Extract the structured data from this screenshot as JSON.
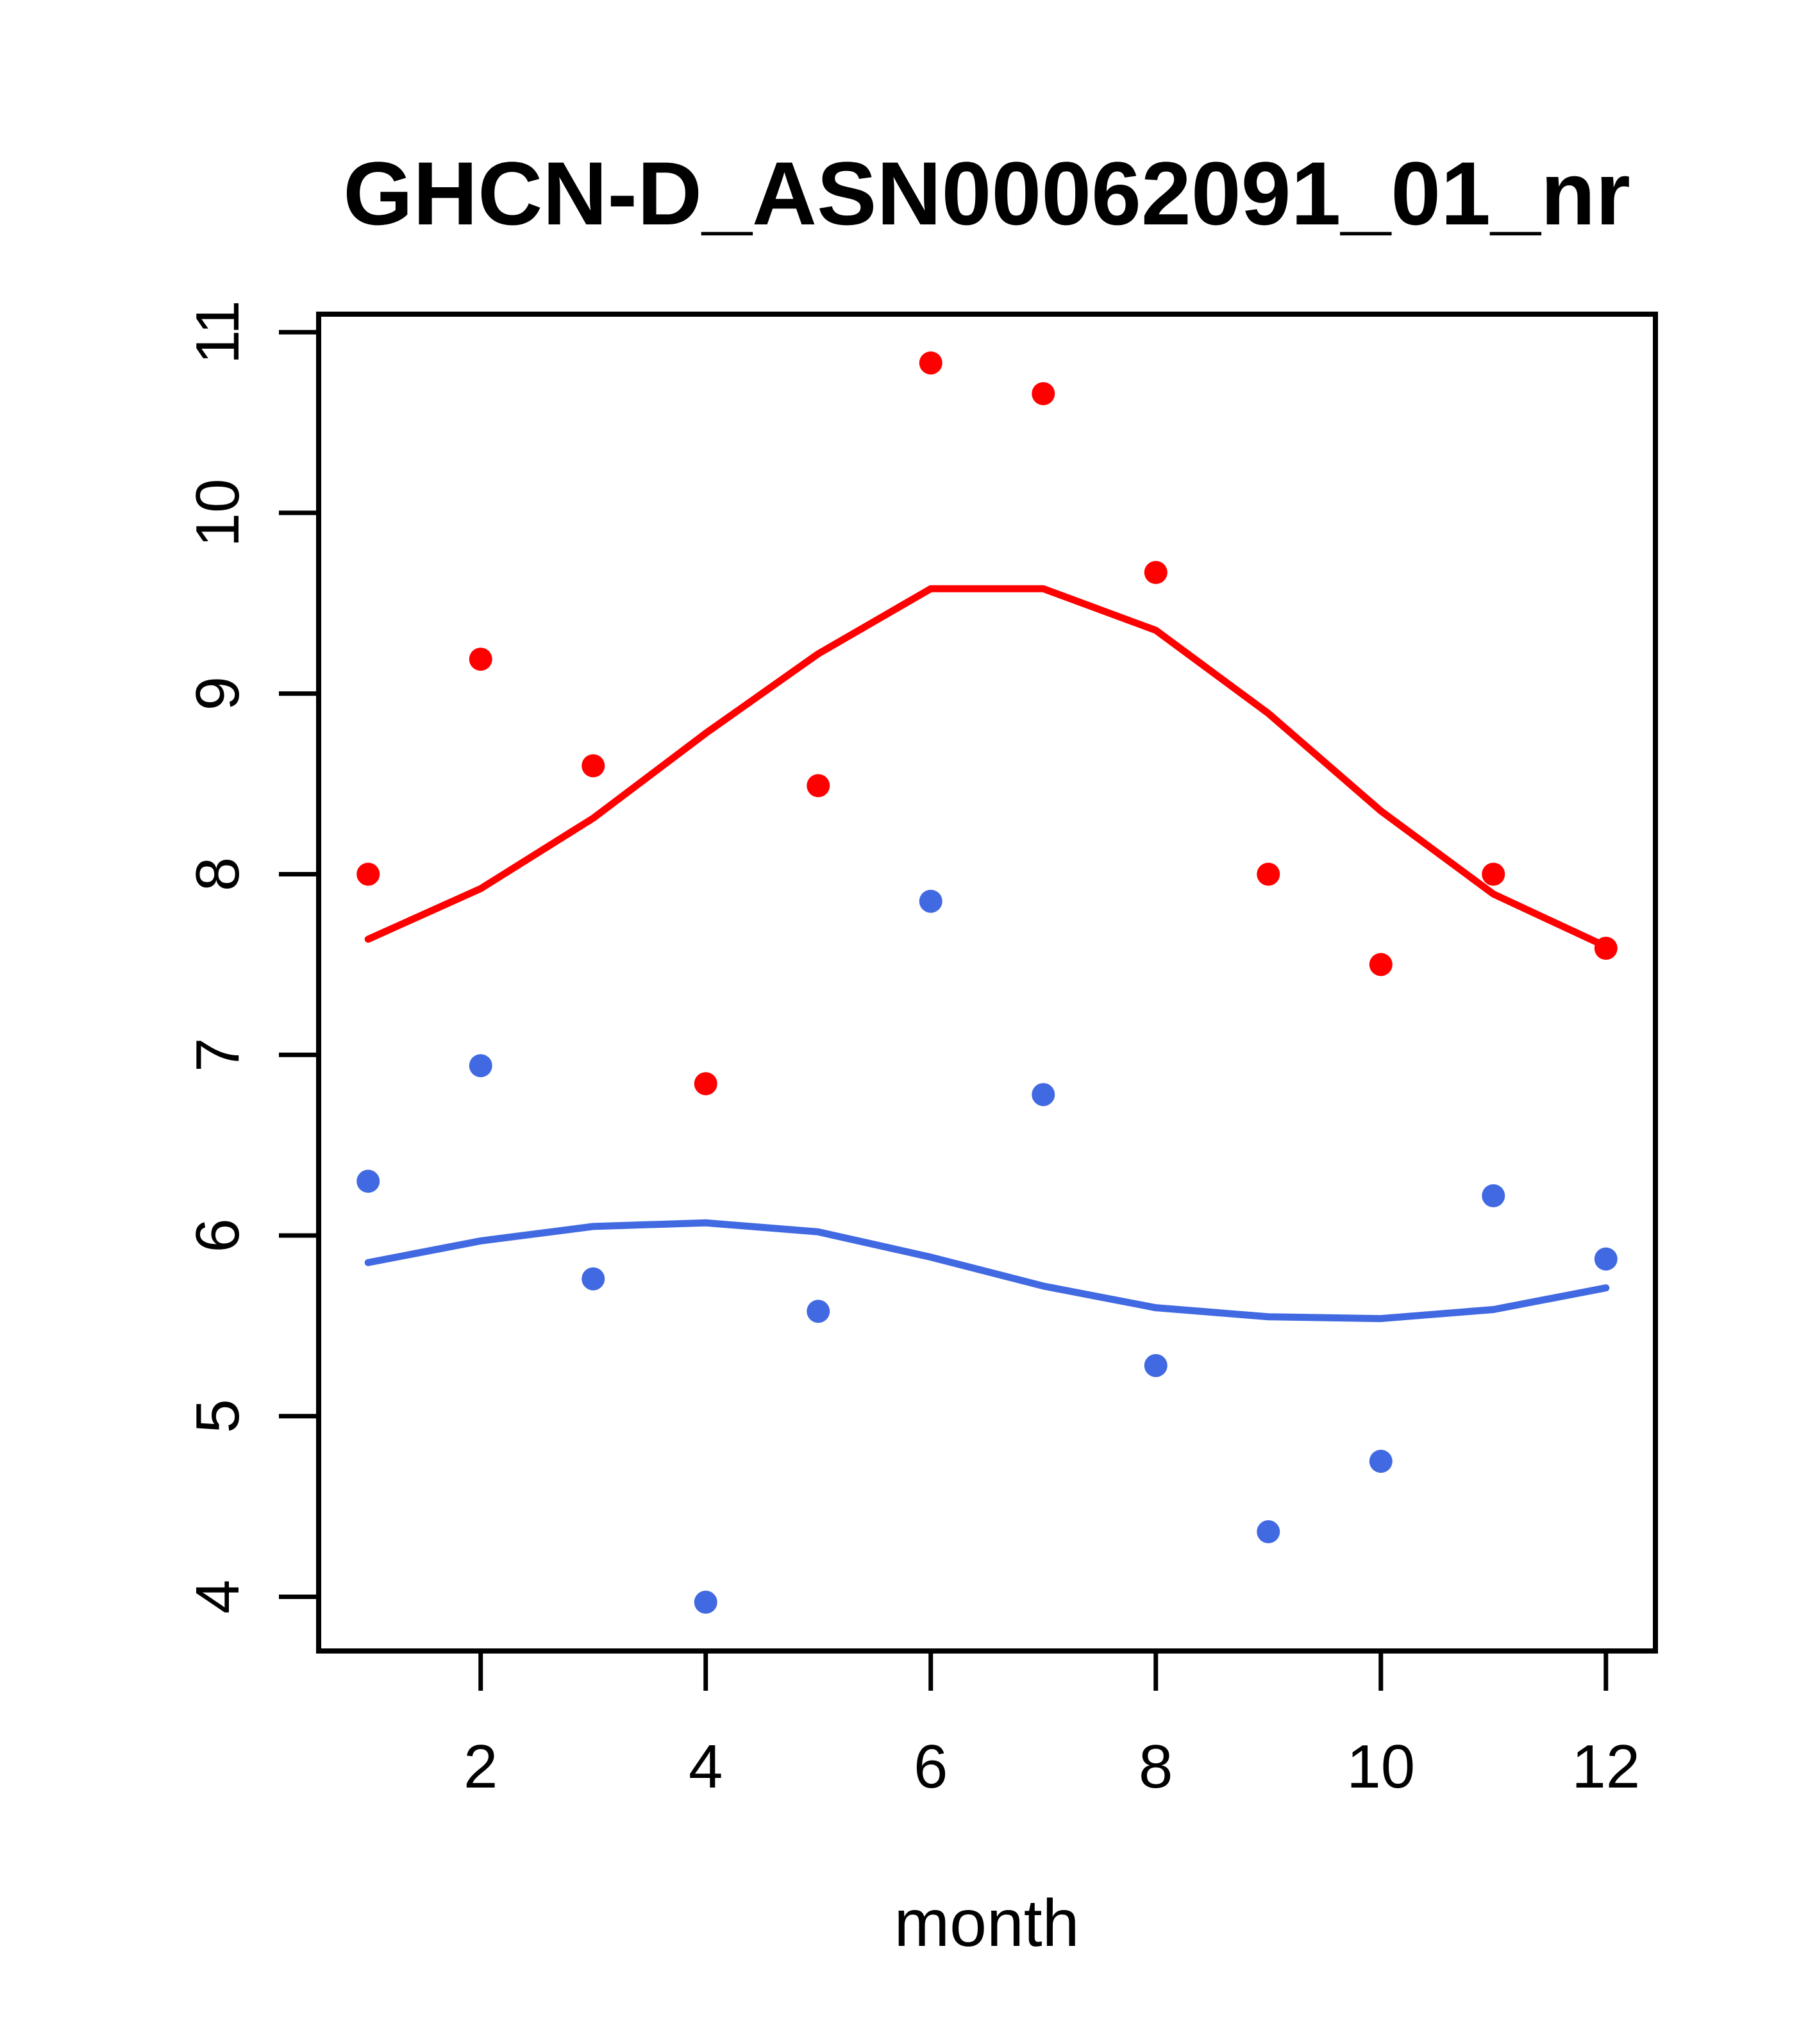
{
  "title": "GHCN-D_ASN00062091_01_nr",
  "x_axis": {
    "label": "month",
    "tick_labels": [
      "2",
      "4",
      "6",
      "8",
      "10",
      "12"
    ],
    "tick_values": [
      2,
      4,
      6,
      8,
      10,
      12
    ],
    "range": [
      0.56,
      12.44
    ]
  },
  "y_axis": {
    "label": "",
    "tick_labels": [
      "4",
      "5",
      "6",
      "7",
      "8",
      "9",
      "10",
      "11"
    ],
    "tick_values": [
      4,
      5,
      6,
      7,
      8,
      9,
      10,
      11
    ],
    "range": [
      3.7,
      11.1
    ]
  },
  "colors": {
    "red": "#ff0000",
    "blue": "#4169e1",
    "axis": "#000000",
    "background": "#ffffff"
  },
  "chart_data": {
    "type": "scatter",
    "title": "GHCN-D_ASN00062091_01_nr",
    "xlabel": "month",
    "ylabel": "",
    "xlim": [
      0.56,
      12.44
    ],
    "ylim": [
      3.7,
      11.1
    ],
    "grid": false,
    "legend": "none",
    "x": [
      1,
      2,
      3,
      4,
      5,
      6,
      7,
      8,
      9,
      10,
      11,
      12
    ],
    "series": [
      {
        "name": "red-points",
        "kind": "points",
        "color_key": "red",
        "values": [
          8.0,
          9.19,
          8.6,
          6.84,
          8.49,
          10.83,
          10.66,
          9.67,
          8.0,
          7.5,
          8.0,
          7.59
        ]
      },
      {
        "name": "blue-points",
        "kind": "points",
        "color_key": "blue",
        "values": [
          6.3,
          6.94,
          5.76,
          3.97,
          5.58,
          7.85,
          6.78,
          5.28,
          4.36,
          4.75,
          6.22,
          5.87
        ]
      },
      {
        "name": "red-lowess-line",
        "kind": "line",
        "color_key": "red",
        "values": [
          7.64,
          7.92,
          8.31,
          8.78,
          9.22,
          9.58,
          9.58,
          9.35,
          8.89,
          8.35,
          7.89,
          7.6
        ]
      },
      {
        "name": "blue-lowess-line",
        "kind": "line",
        "color_key": "blue",
        "values": [
          5.85,
          5.97,
          6.05,
          6.07,
          6.02,
          5.88,
          5.72,
          5.6,
          5.55,
          5.54,
          5.59,
          5.71
        ]
      }
    ]
  }
}
